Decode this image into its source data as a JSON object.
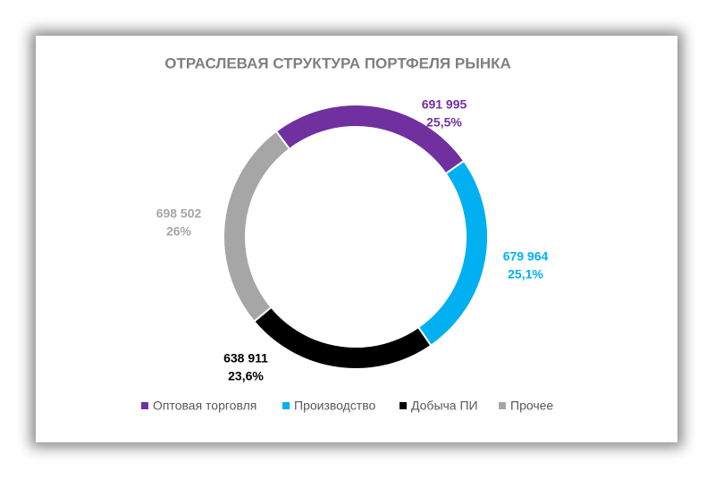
{
  "chart_data": {
    "type": "donut",
    "title": "ОТРАСЛЕВАЯ СТРУКТУРА ПОРТФЕЛЯ РЫНКА",
    "categories": [
      "Оптовая торговля",
      "Производство",
      "Добыча ПИ",
      "Прочее"
    ],
    "values": [
      691995,
      679964,
      638911,
      698502
    ],
    "value_labels": [
      "691 995",
      "679 964",
      "638 911",
      "698 502"
    ],
    "percent_labels": [
      "25,5%",
      "25,1%",
      "23,6%",
      "26%"
    ],
    "colors": [
      "#7030a0",
      "#00b0f0",
      "#000000",
      "#a6a6a6"
    ],
    "legend": "bottom"
  }
}
